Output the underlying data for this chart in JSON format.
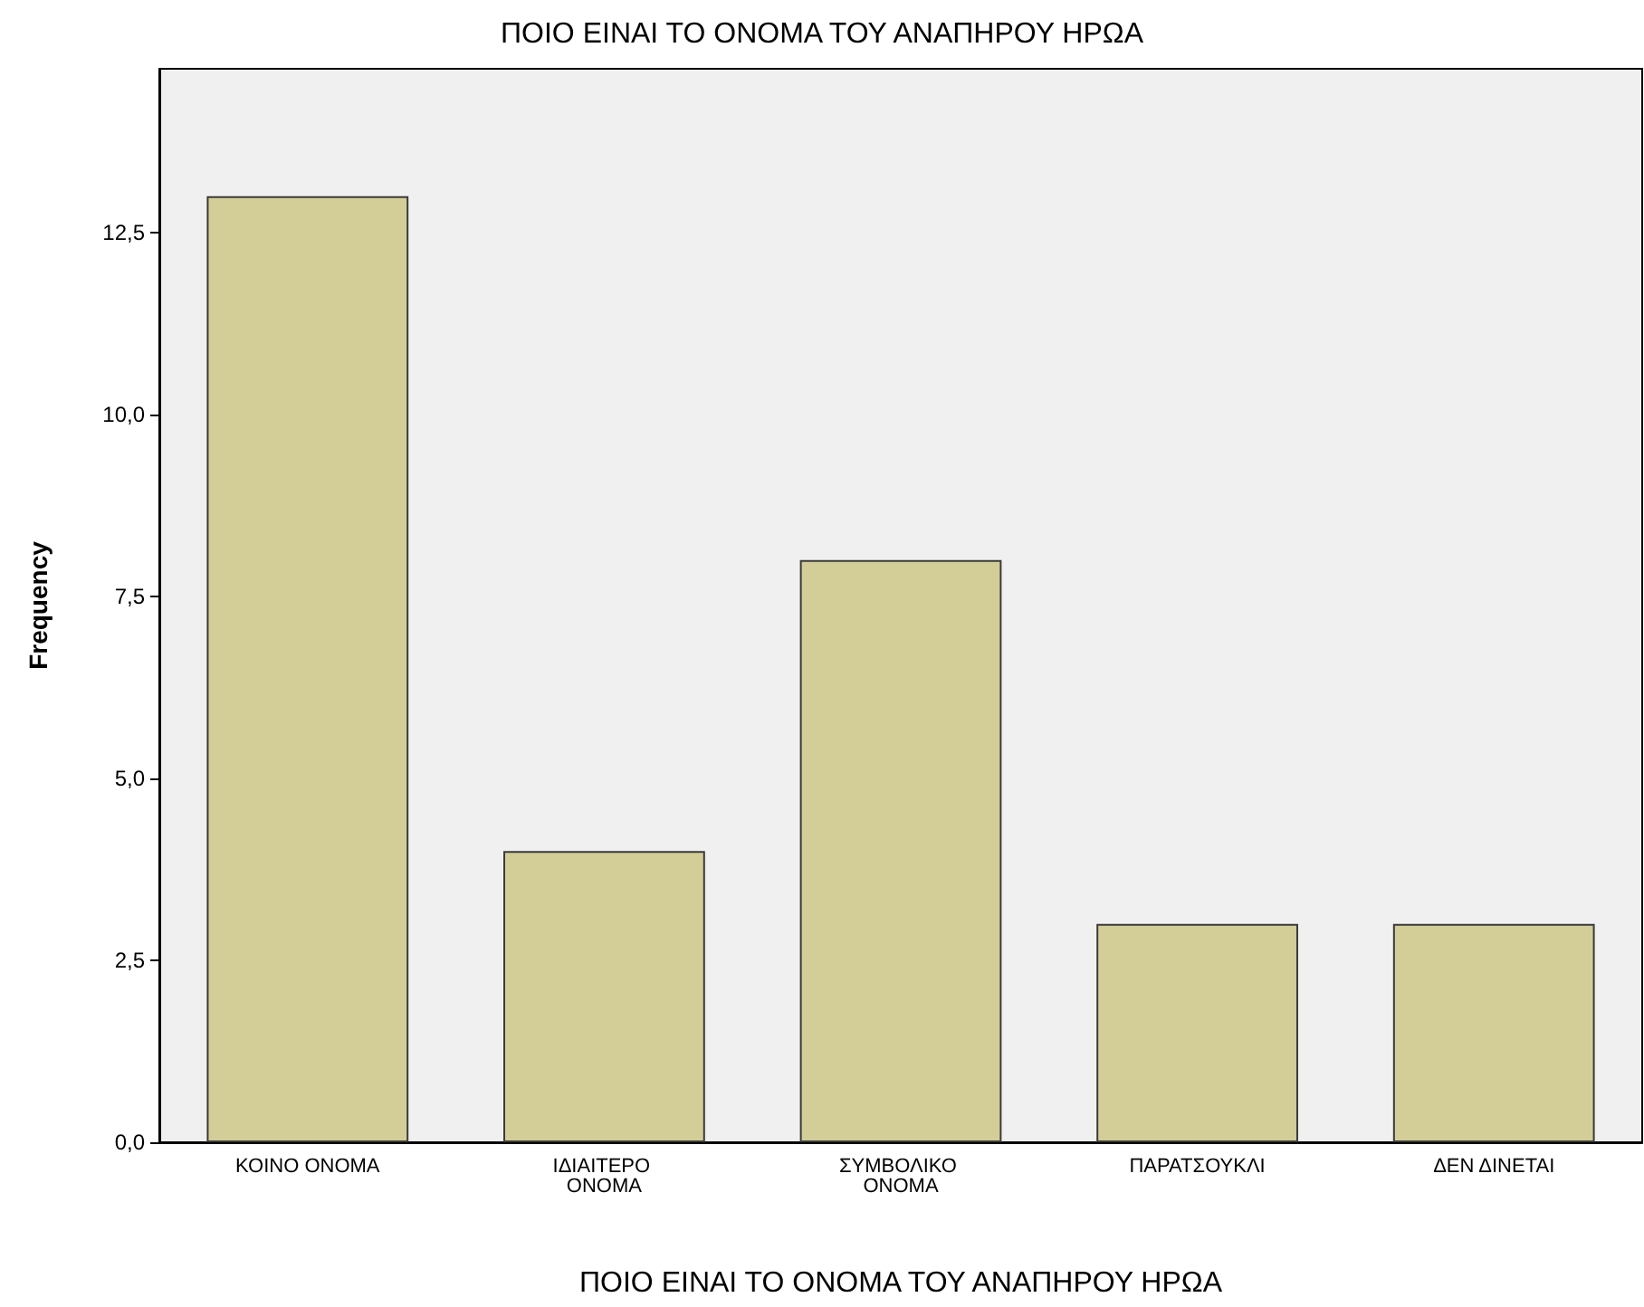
{
  "chart_data": {
    "type": "bar",
    "title": "ΠΟΙΟ ΕΙΝΑΙ ΤΟ ΟΝΟΜΑ ΤΟΥ ΑΝΑΠΗΡΟΥ ΗΡΩΑ",
    "xlabel": "ΠΟΙΟ ΕΙΝΑΙ ΤΟ ΟΝΟΜΑ ΤΟΥ ΑΝΑΠΗΡΟΥ ΗΡΩΑ",
    "ylabel": "Frequency",
    "categories": [
      "ΚΟΙΝΟ ΟΝΟΜΑ",
      "ΙΔΙΑΙΤΕΡΟ ΟΝΟΜΑ",
      "ΣΥΜΒΟΛΙΚΟ ΟΝΟΜΑ",
      "ΠΑΡΑΤΣΟΥΚΛΙ",
      "ΔΕΝ ΔΙΝΕΤΑΙ"
    ],
    "values": [
      13,
      4,
      8,
      3,
      3
    ],
    "color": "#d3ce97",
    "ylim": [
      0,
      14.75
    ],
    "yticks": [
      {
        "value": 0,
        "label": "0,0"
      },
      {
        "value": 2.5,
        "label": "2,5"
      },
      {
        "value": 5,
        "label": "5,0"
      },
      {
        "value": 7.5,
        "label": "7,5"
      },
      {
        "value": 10,
        "label": "10,0"
      },
      {
        "value": 12.5,
        "label": "12,5"
      }
    ],
    "grid": false
  }
}
